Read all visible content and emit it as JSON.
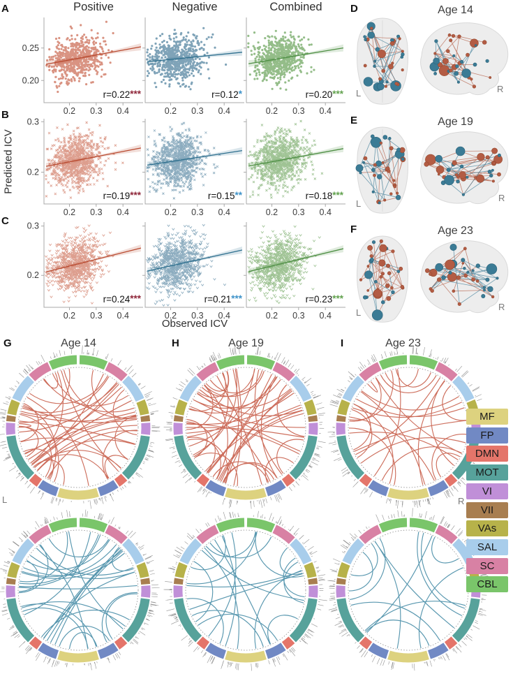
{
  "panel_letters": {
    "A": "A",
    "B": "B",
    "C": "C",
    "D": "D",
    "E": "E",
    "F": "F",
    "G": "G",
    "H": "H",
    "I": "I"
  },
  "column_titles": [
    "Positive",
    "Negative",
    "Combined"
  ],
  "labels": {
    "L": "L",
    "R": "R",
    "predicted": "Predicted ICV",
    "observed": "Observed ICV"
  },
  "axis": {
    "x_ticks": [
      0.2,
      0.3,
      0.4
    ],
    "x_tick_labels": [
      "0.2",
      "0.3",
      "0.4"
    ]
  },
  "columns": [
    {
      "label": "Positive",
      "point_color": "#cb6a52",
      "line_color": "#b8492f",
      "star_color": "#8e2639"
    },
    {
      "label": "Negative",
      "point_color": "#4e809c",
      "line_color": "#2e6f8e",
      "star_color": "#3f93c9"
    },
    {
      "label": "Combined",
      "point_color": "#6ba35b",
      "line_color": "#4f8f45",
      "star_color": "#62a24e"
    }
  ],
  "rows": [
    {
      "panel": "A",
      "marker": "circle",
      "y_ticks": [
        0.2,
        0.25
      ],
      "y_tick_labels": [
        "0.20",
        "0.25"
      ],
      "r_labels": [
        "r=0.22",
        "r=0.12",
        "r=0.20"
      ],
      "stars": [
        "***",
        "*",
        "***"
      ]
    },
    {
      "panel": "B",
      "marker": "x",
      "y_ticks": [
        0.2,
        0.3
      ],
      "y_tick_labels": [
        "0.2",
        "0.3"
      ],
      "r_labels": [
        "r=0.19",
        "r=0.15",
        "r=0.18"
      ],
      "stars": [
        "***",
        "**",
        "***"
      ]
    },
    {
      "panel": "C",
      "marker": "triangle-down",
      "y_ticks": [
        0.2,
        0.3
      ],
      "y_tick_labels": [
        "0.2",
        "0.3"
      ],
      "r_labels": [
        "r=0.24",
        "r=0.21",
        "r=0.23"
      ],
      "stars": [
        "***",
        "***",
        "***"
      ]
    }
  ],
  "brains": [
    {
      "panel": "D",
      "title": "Age 14"
    },
    {
      "panel": "E",
      "title": "Age 19"
    },
    {
      "panel": "F",
      "title": "Age 23"
    }
  ],
  "brain_style": {
    "node_colors": [
      "#b35c44",
      "#3b7b95"
    ],
    "node_strokes": [
      "#96492f",
      "#2c637a"
    ],
    "brain_fill": "#ededed",
    "brain_stroke": "#d9d9d9"
  },
  "circos": {
    "edge_colors": {
      "positive": "#c14a33",
      "negative": "#2e7d9b"
    },
    "top_row": [
      {
        "panel": "G",
        "title": "Age 14",
        "connections": 40
      },
      {
        "panel": "H",
        "title": "Age 19",
        "connections": 46
      },
      {
        "panel": "I",
        "title": "Age 23",
        "connections": 27
      }
    ],
    "bottom_row": [
      {
        "connections": 30
      },
      {
        "connections": 21
      },
      {
        "connections": 13
      }
    ],
    "segments_half": [
      [
        "CBL",
        24
      ],
      [
        "SC",
        19
      ],
      [
        "SAL",
        23
      ],
      [
        "VAs",
        13
      ],
      [
        "VII",
        6
      ],
      [
        "VI",
        11
      ],
      [
        "MOT",
        40
      ],
      [
        "DMN",
        9
      ],
      [
        "FP",
        17
      ],
      [
        "MF",
        18
      ]
    ]
  },
  "legend": {
    "items": [
      {
        "label": "MF",
        "color": "#ddd27f"
      },
      {
        "label": "FP",
        "color": "#7189c4"
      },
      {
        "label": "DMN",
        "color": "#e4756a"
      },
      {
        "label": "MOT",
        "color": "#57a29b"
      },
      {
        "label": "VI",
        "color": "#c08fd8"
      },
      {
        "label": "VII",
        "color": "#a87e50"
      },
      {
        "label": "VAs",
        "color": "#b7b24a"
      },
      {
        "label": "SAL",
        "color": "#a8cdeb"
      },
      {
        "label": "SC",
        "color": "#d881a4"
      },
      {
        "label": "CBL",
        "color": "#7ac56a"
      }
    ]
  },
  "render_params": {
    "scatter": {
      "n_points": [
        620,
        850,
        900
      ],
      "x_mean": 0.224,
      "x_sd": 0.048,
      "x_domain": [
        0.105,
        0.475
      ],
      "y_means": [
        0.2335,
        0.223,
        0.222
      ],
      "y_sds": [
        0.0165,
        0.026,
        0.0275
      ],
      "y_domains": [
        [
          0.166,
          0.297
        ],
        [
          0.137,
          0.306
        ],
        [
          0.135,
          0.308
        ]
      ],
      "seeds": [
        [
          11,
          12,
          13
        ],
        [
          21,
          22,
          23
        ],
        [
          31,
          32,
          33
        ]
      ]
    },
    "brains": {
      "seeds": [
        101,
        102,
        103
      ],
      "nodes_per_view": 34,
      "edges_per_view": 44
    },
    "circos_seeds": [
      [
        201,
        202,
        203
      ],
      [
        204,
        205,
        206
      ]
    ]
  },
  "chart_data": {
    "type": "multi-panel-figure",
    "scatter_panels": [
      {
        "panel": "A",
        "marker": "circle",
        "xlabel": "Observed ICV",
        "ylabel": "Predicted ICV",
        "x_ticks": [
          0.2,
          0.3,
          0.4
        ],
        "y_ticks": [
          0.2,
          0.25
        ],
        "series": [
          {
            "name": "Positive",
            "r": 0.22,
            "significance": "***"
          },
          {
            "name": "Negative",
            "r": 0.12,
            "significance": "*"
          },
          {
            "name": "Combined",
            "r": 0.2,
            "significance": "***"
          }
        ]
      },
      {
        "panel": "B",
        "marker": "x",
        "xlabel": "Observed ICV",
        "ylabel": "Predicted ICV",
        "x_ticks": [
          0.2,
          0.3,
          0.4
        ],
        "y_ticks": [
          0.2,
          0.3
        ],
        "series": [
          {
            "name": "Positive",
            "r": 0.19,
            "significance": "***"
          },
          {
            "name": "Negative",
            "r": 0.15,
            "significance": "**"
          },
          {
            "name": "Combined",
            "r": 0.18,
            "significance": "***"
          }
        ]
      },
      {
        "panel": "C",
        "marker": "triangle-down",
        "xlabel": "Observed ICV",
        "ylabel": "Predicted ICV",
        "x_ticks": [
          0.2,
          0.3,
          0.4
        ],
        "y_ticks": [
          0.2,
          0.3
        ],
        "series": [
          {
            "name": "Positive",
            "r": 0.24,
            "significance": "***"
          },
          {
            "name": "Negative",
            "r": 0.21,
            "significance": "***"
          },
          {
            "name": "Combined",
            "r": 0.23,
            "significance": "***"
          }
        ]
      }
    ],
    "brain_network_panels": [
      {
        "panel": "D",
        "title": "Age 14",
        "views": [
          "axial",
          "sagittal"
        ],
        "edge_types": [
          "positive (red)",
          "negative (blue)"
        ]
      },
      {
        "panel": "E",
        "title": "Age 19",
        "views": [
          "axial",
          "sagittal"
        ],
        "edge_types": [
          "positive (red)",
          "negative (blue)"
        ]
      },
      {
        "panel": "F",
        "title": "Age 23",
        "views": [
          "axial",
          "sagittal"
        ],
        "edge_types": [
          "positive (red)",
          "negative (blue)"
        ]
      }
    ],
    "chord_diagram_panels": [
      {
        "panel": "G",
        "title": "Age 14",
        "edge_set": "positive",
        "edge_color": "#c14a33"
      },
      {
        "panel": "H",
        "title": "Age 19",
        "edge_set": "positive",
        "edge_color": "#c14a33"
      },
      {
        "panel": "I",
        "title": "Age 23",
        "edge_set": "positive",
        "edge_color": "#c14a33"
      },
      {
        "panel": "G-bottom",
        "title": "Age 14",
        "edge_set": "negative",
        "edge_color": "#2e7d9b"
      },
      {
        "panel": "H-bottom",
        "title": "Age 19",
        "edge_set": "negative",
        "edge_color": "#2e7d9b"
      },
      {
        "panel": "I-bottom",
        "title": "Age 23",
        "edge_set": "negative",
        "edge_color": "#2e7d9b"
      }
    ],
    "networks_legend": [
      "MF",
      "FP",
      "DMN",
      "MOT",
      "VI",
      "VII",
      "VAs",
      "SAL",
      "SC",
      "CBL"
    ]
  }
}
